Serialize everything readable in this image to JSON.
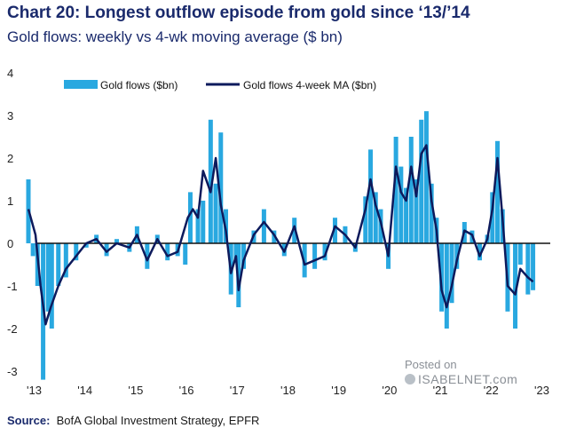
{
  "header": {
    "title": "Chart 20: Longest outflow episode from gold since ‘13/’14",
    "subtitle": "Gold flows: weekly vs 4-wk moving average ($ bn)"
  },
  "footer": {
    "source_label": "Source:",
    "source_text": "BofA Global Investment Strategy, EPFR"
  },
  "watermark": {
    "line1": "Posted on",
    "line2": "ISABELNET.com"
  },
  "colors": {
    "bar": "#29a8e0",
    "line": "#0d1a5c",
    "zero": "#111111"
  },
  "chart_data": {
    "type": "bar",
    "ylim": [
      -3,
      4
    ],
    "yticks": [
      -3,
      -2,
      -1,
      0,
      1,
      2,
      3,
      4
    ],
    "x_tick_labels": [
      "'13",
      "'14",
      "'15",
      "'16",
      "'17",
      "'18",
      "'19",
      "'20",
      "'21",
      "'22",
      "'23"
    ],
    "x_ticks": [
      2013,
      2014,
      2015,
      2016,
      2017,
      2018,
      2019,
      2020,
      2021,
      2022,
      2023
    ],
    "xlim": [
      2013,
      2023
    ],
    "legend": {
      "position": "top-left"
    },
    "series": [
      {
        "name": "Gold flows ($bn)",
        "kind": "bar",
        "x": [
          2012.86,
          2012.95,
          2013.04,
          2013.15,
          2013.25,
          2013.32,
          2013.45,
          2013.6,
          2013.8,
          2014.0,
          2014.2,
          2014.4,
          2014.6,
          2014.85,
          2015.0,
          2015.2,
          2015.4,
          2015.6,
          2015.8,
          2015.95,
          2016.05,
          2016.2,
          2016.3,
          2016.45,
          2016.55,
          2016.65,
          2016.75,
          2016.85,
          2016.95,
          2017.0,
          2017.1,
          2017.3,
          2017.5,
          2017.7,
          2017.9,
          2018.1,
          2018.3,
          2018.5,
          2018.7,
          2018.9,
          2019.1,
          2019.3,
          2019.5,
          2019.6,
          2019.7,
          2019.8,
          2019.95,
          2020.1,
          2020.2,
          2020.3,
          2020.4,
          2020.5,
          2020.6,
          2020.7,
          2020.8,
          2020.9,
          2021.0,
          2021.1,
          2021.2,
          2021.3,
          2021.45,
          2021.6,
          2021.75,
          2021.9,
          2022.0,
          2022.1,
          2022.2,
          2022.3,
          2022.45,
          2022.55,
          2022.7,
          2022.8
        ],
        "values": [
          1.5,
          -0.3,
          -1.0,
          -3.2,
          -1.6,
          -2.0,
          -1.0,
          -0.8,
          -0.4,
          -0.1,
          0.2,
          -0.3,
          0.1,
          -0.2,
          0.4,
          -0.6,
          0.2,
          -0.4,
          -0.3,
          -0.5,
          1.2,
          0.8,
          1.0,
          2.9,
          1.4,
          2.6,
          0.8,
          -1.2,
          -0.4,
          -1.5,
          -0.6,
          0.3,
          0.8,
          0.3,
          -0.3,
          0.6,
          -0.8,
          -0.6,
          -0.4,
          0.6,
          0.4,
          -0.2,
          1.1,
          2.2,
          1.2,
          0.8,
          -0.6,
          2.5,
          1.8,
          1.3,
          2.5,
          1.5,
          2.9,
          3.1,
          1.4,
          0.6,
          -1.6,
          -2.0,
          -1.4,
          -0.6,
          0.5,
          0.3,
          -0.4,
          0.2,
          1.2,
          2.4,
          0.8,
          -1.6,
          -2.0,
          -0.5,
          -1.2,
          -1.1
        ]
      },
      {
        "name": "Gold flows 4-week MA ($bn)",
        "kind": "line",
        "x": [
          2012.86,
          2013.0,
          2013.1,
          2013.2,
          2013.3,
          2013.45,
          2013.6,
          2013.8,
          2014.0,
          2014.2,
          2014.4,
          2014.6,
          2014.85,
          2015.0,
          2015.2,
          2015.4,
          2015.6,
          2015.8,
          2016.0,
          2016.1,
          2016.2,
          2016.3,
          2016.45,
          2016.55,
          2016.65,
          2016.75,
          2016.85,
          2016.95,
          2017.0,
          2017.1,
          2017.3,
          2017.5,
          2017.7,
          2017.9,
          2018.1,
          2018.3,
          2018.5,
          2018.7,
          2018.9,
          2019.1,
          2019.3,
          2019.5,
          2019.6,
          2019.7,
          2019.8,
          2019.95,
          2020.1,
          2020.2,
          2020.3,
          2020.4,
          2020.5,
          2020.6,
          2020.7,
          2020.8,
          2020.9,
          2021.0,
          2021.1,
          2021.2,
          2021.3,
          2021.45,
          2021.6,
          2021.75,
          2021.9,
          2022.0,
          2022.1,
          2022.2,
          2022.3,
          2022.45,
          2022.55,
          2022.7,
          2022.8
        ],
        "values": [
          0.8,
          0.2,
          -1.0,
          -1.9,
          -1.5,
          -1.0,
          -0.6,
          -0.3,
          0.0,
          0.1,
          -0.2,
          0.0,
          -0.1,
          0.2,
          -0.4,
          0.1,
          -0.3,
          -0.2,
          0.6,
          0.8,
          0.6,
          1.7,
          1.2,
          2.0,
          0.9,
          0.3,
          -0.7,
          -0.3,
          -1.1,
          -0.4,
          0.2,
          0.5,
          0.2,
          -0.2,
          0.4,
          -0.5,
          -0.4,
          -0.3,
          0.4,
          0.2,
          -0.1,
          0.8,
          1.5,
          0.9,
          0.5,
          -0.3,
          1.8,
          1.2,
          1.0,
          1.8,
          1.1,
          2.1,
          2.3,
          1.0,
          0.3,
          -1.1,
          -1.5,
          -1.0,
          -0.4,
          0.3,
          0.2,
          -0.3,
          0.1,
          0.8,
          2.0,
          0.6,
          -1.0,
          -1.2,
          -0.6,
          -0.8,
          -0.9
        ]
      }
    ]
  }
}
